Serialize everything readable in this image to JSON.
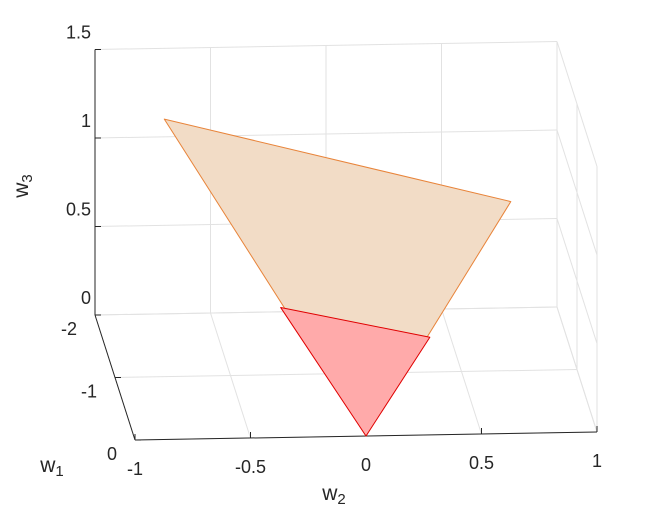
{
  "chart_data": {
    "type": "patch3d",
    "xlabel": {
      "base": "w",
      "sub": "2"
    },
    "ylabel": {
      "base": "w",
      "sub": "1"
    },
    "zlabel": {
      "base": "w",
      "sub": "3"
    },
    "xlim": [
      -1,
      1
    ],
    "xticks": [
      -1,
      -0.5,
      0,
      0.5,
      1
    ],
    "ylim": [
      -2,
      0
    ],
    "yticks": [
      -2,
      -1,
      0
    ],
    "zlim": [
      0,
      1.5
    ],
    "zticks": [
      0,
      0.5,
      1,
      1.5
    ],
    "grid": true,
    "patches": [
      {
        "color": "#f2dcc6",
        "edgecolor": "#e8843a",
        "vertices": [
          [
            0,
            0,
            0
          ],
          [
            -2,
            -0.7,
            1.1
          ],
          [
            -2,
            0.8,
            0.6
          ]
        ]
      },
      {
        "color": "#ffaaaa",
        "edgecolor": "#e00000",
        "vertices": [
          [
            0,
            0,
            0
          ],
          [
            -0.8,
            -0.3,
            0.45
          ],
          [
            -0.85,
            0.35,
            0.25
          ]
        ]
      }
    ]
  }
}
